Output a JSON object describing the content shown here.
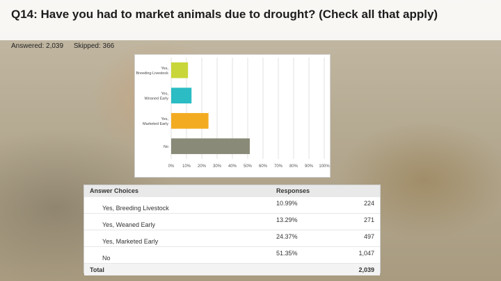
{
  "slide": {
    "title": "Q14: Have you had to market animals due to drought? (Check all that apply)",
    "answered": "Answered: 2,039",
    "skipped": "Skipped: 366"
  },
  "chart_data": {
    "type": "bar",
    "orientation": "horizontal",
    "categories": [
      "Yes, Breeding Livestock",
      "Yes, Weaned Early",
      "Yes, Marketed Early",
      "No"
    ],
    "values": [
      10.99,
      13.29,
      24.37,
      51.35
    ],
    "colors": [
      "#c9d63a",
      "#2bbcc4",
      "#f3ac22",
      "#8a8a78"
    ],
    "xlim": [
      0,
      100
    ],
    "xticks": [
      "0%",
      "10%",
      "20%",
      "30%",
      "40%",
      "50%",
      "60%",
      "70%",
      "80%",
      "90%",
      "100%"
    ],
    "grid": true
  },
  "table": {
    "headers": [
      "Answer Choices",
      "Responses"
    ],
    "rows": [
      {
        "choice": "Yes, Breeding Livestock",
        "percent": "10.99%",
        "count": "224"
      },
      {
        "choice": "Yes, Weaned Early",
        "percent": "13.29%",
        "count": "271"
      },
      {
        "choice": "Yes, Marketed Early",
        "percent": "24.37%",
        "count": "497"
      },
      {
        "choice": "No",
        "percent": "51.35%",
        "count": "1,047"
      }
    ],
    "total_label": "Total",
    "total_value": "2,039"
  }
}
